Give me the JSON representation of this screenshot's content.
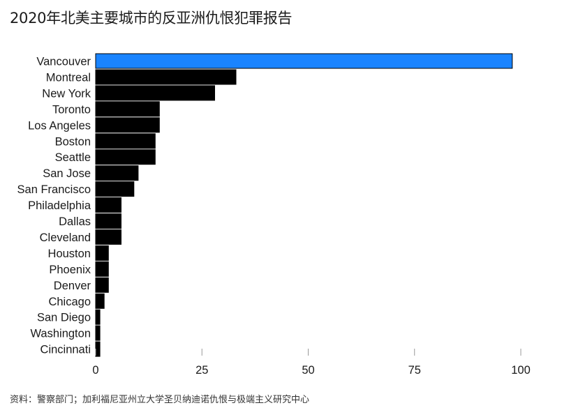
{
  "chart_data": {
    "type": "bar",
    "orientation": "horizontal",
    "title": "2020年北美主要城市的反亚洲仇恨犯罪报告",
    "source": "资料：警察部门；加利福尼亚州立大学圣贝纳迪诺仇恨与极端主义研究中心",
    "categories": [
      "Vancouver",
      "Montreal",
      "New York",
      "Toronto",
      "Los Angeles",
      "Boston",
      "Seattle",
      "San Jose",
      "San Francisco",
      "Philadelphia",
      "Dallas",
      "Cleveland",
      "Houston",
      "Phoenix",
      "Denver",
      "Chicago",
      "San Diego",
      "Washington",
      "Cincinnati"
    ],
    "values": [
      98,
      33,
      28,
      15,
      15,
      14,
      14,
      10,
      9,
      6,
      6,
      6,
      3,
      3,
      3,
      2,
      1,
      1,
      1
    ],
    "xlim": [
      0,
      100
    ],
    "xticks": [
      "0",
      "25",
      "50",
      "75",
      "100"
    ],
    "xlabel": "",
    "ylabel": "",
    "grid": false,
    "colors": {
      "highlight": "#1a84ff",
      "default": "#000000",
      "tick": "#999999"
    }
  }
}
